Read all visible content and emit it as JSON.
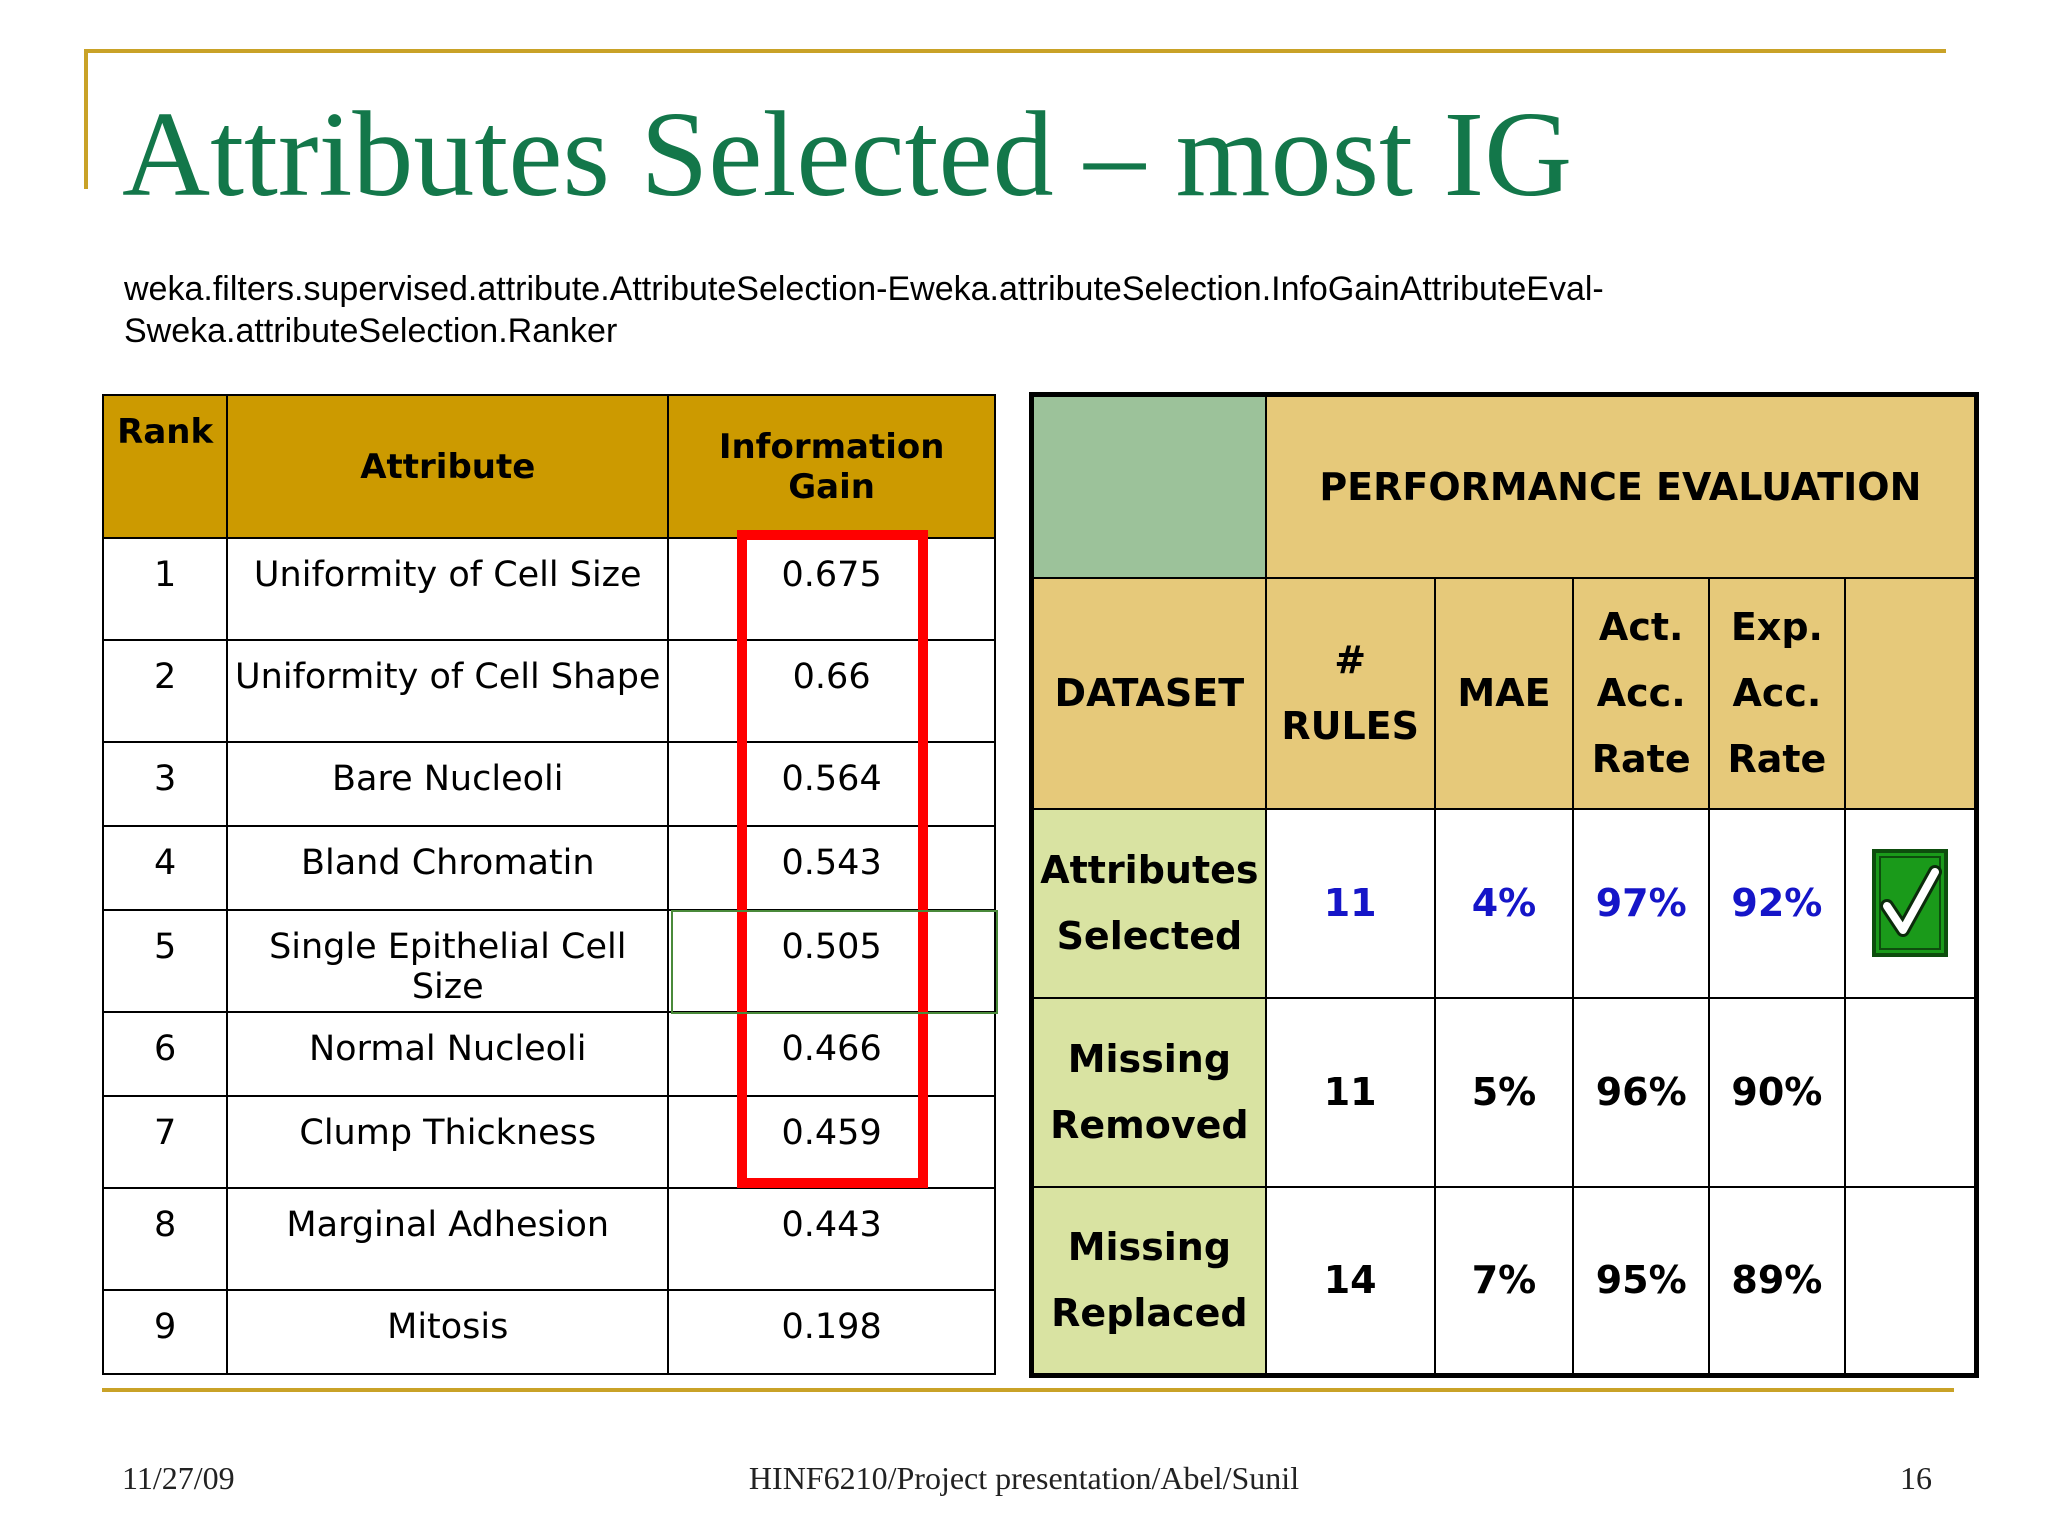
{
  "slide": {
    "title": "Attributes Selected – most IG",
    "subtitle_line1": "weka.filters.supervised.attribute.AttributeSelection-Eweka.attributeSelection.InfoGainAttributeEval-",
    "subtitle_line2": "Sweka.attributeSelection.Ranker"
  },
  "ig_table": {
    "headers": {
      "rank": "Rank",
      "attribute": "Attribute",
      "gain_line1": "Information",
      "gain_line2": "Gain"
    },
    "rows": [
      {
        "rank": "1",
        "attribute": "Uniformity of Cell Size",
        "gain": "0.675"
      },
      {
        "rank": "2",
        "attribute": "Uniformity of Cell Shape",
        "gain": "0.66"
      },
      {
        "rank": "3",
        "attribute": "Bare Nucleoli",
        "gain": "0.564"
      },
      {
        "rank": "4",
        "attribute": "Bland Chromatin",
        "gain": "0.543"
      },
      {
        "rank": "5",
        "attribute": "Single Epithelial Cell Size",
        "gain": "0.505"
      },
      {
        "rank": "6",
        "attribute": "Normal Nucleoli",
        "gain": "0.466"
      },
      {
        "rank": "7",
        "attribute": "Clump Thickness",
        "gain": "0.459"
      },
      {
        "rank": "8",
        "attribute": "Marginal Adhesion",
        "gain": "0.443"
      },
      {
        "rank": "9",
        "attribute": "Mitosis",
        "gain": "0.198"
      }
    ]
  },
  "perf_table": {
    "title": "PERFORMANCE EVALUATION",
    "headers": {
      "dataset": "DATASET",
      "rules_line1": "#",
      "rules_line2": "RULES",
      "mae": "MAE",
      "act_line1": "Act.",
      "act_line2": "Acc.",
      "act_line3": "Rate",
      "exp_line1": "Exp.",
      "exp_line2": "Acc.",
      "exp_line3": "Rate"
    },
    "rows": [
      {
        "name_line1": "Attributes",
        "name_line2": "Selected",
        "rules": "11",
        "mae": "4%",
        "act": "97%",
        "exp": "92%"
      },
      {
        "name_line1": "Missing",
        "name_line2": "Removed",
        "rules": "11",
        "mae": "5%",
        "act": "96%",
        "exp": "90%"
      },
      {
        "name_line1": "Missing",
        "name_line2": "Replaced",
        "rules": "14",
        "mae": "7%",
        "act": "95%",
        "exp": "89%"
      }
    ],
    "check_icon": "checkmark-icon",
    "colors": {
      "highlight_text": "#1515c8",
      "header": "#e6c97a",
      "dataset": "#d9e3a2",
      "corner": "#9cc29a",
      "check": "#1a9a1a"
    }
  },
  "footer": {
    "date": "11/27/09",
    "center": "HINF6210/Project presentation/Abel/Sunil",
    "page": "16"
  }
}
